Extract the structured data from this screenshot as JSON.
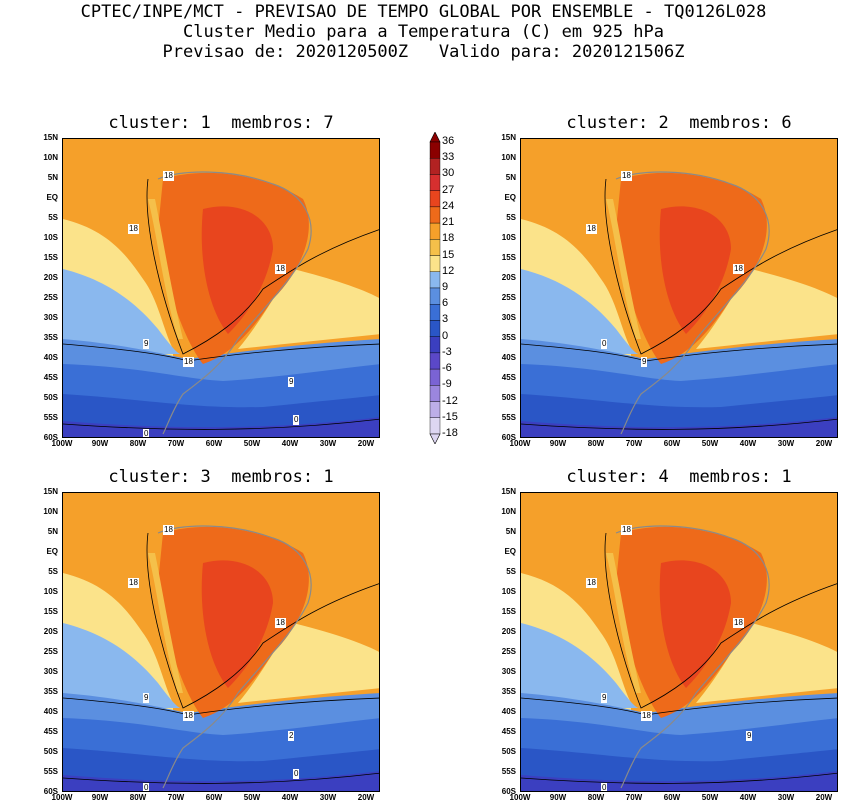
{
  "header": {
    "line1": "CPTEC/INPE/MCT - PREVISAO DE TEMPO GLOBAL POR ENSEMBLE - TQ0126L028",
    "line2": "Cluster Medio para a Temperatura (C) em 925 hPa",
    "line3": "Previsao de: 2020120500Z   Valido para: 2020121506Z"
  },
  "panels": [
    {
      "title": "cluster: 1  membros: 7",
      "labels": [
        "18",
        "18",
        "18",
        "18",
        "9",
        "9",
        "0",
        "0"
      ]
    },
    {
      "title": "cluster: 2  membros: 6",
      "labels": [
        "18",
        "18",
        "18",
        "9",
        "0"
      ]
    },
    {
      "title": "cluster: 3  membros: 1",
      "labels": [
        "18",
        "18",
        "18",
        "18",
        "9",
        "2",
        "0",
        "0"
      ]
    },
    {
      "title": "cluster: 4  membros: 1",
      "labels": [
        "18",
        "18",
        "18",
        "18",
        "9",
        "9",
        "0"
      ]
    }
  ],
  "lat_labels": [
    "15N",
    "10N",
    "5N",
    "EQ",
    "5S",
    "10S",
    "15S",
    "20S",
    "25S",
    "30S",
    "35S",
    "40S",
    "45S",
    "50S",
    "55S",
    "60S"
  ],
  "lon_labels": [
    "100W",
    "90W",
    "80W",
    "70W",
    "60W",
    "50W",
    "40W",
    "30W",
    "20W"
  ],
  "colorbar": {
    "levels": [
      "36",
      "33",
      "30",
      "27",
      "24",
      "21",
      "18",
      "15",
      "12",
      "9",
      "6",
      "3",
      "0",
      "-3",
      "-6",
      "-9",
      "-12",
      "-15",
      "-18"
    ],
    "colors": [
      "#8b0000",
      "#b22222",
      "#d62f2f",
      "#e8451e",
      "#ee6a1a",
      "#f5a02a",
      "#f5c04a",
      "#fbe38a",
      "#8ab8ee",
      "#5b8fe0",
      "#3a6fd6",
      "#2a56c6",
      "#3b3fc0",
      "#5b48c8",
      "#7a63d4",
      "#9b86de",
      "#bdaee8",
      "#ddd6f2"
    ]
  }
}
